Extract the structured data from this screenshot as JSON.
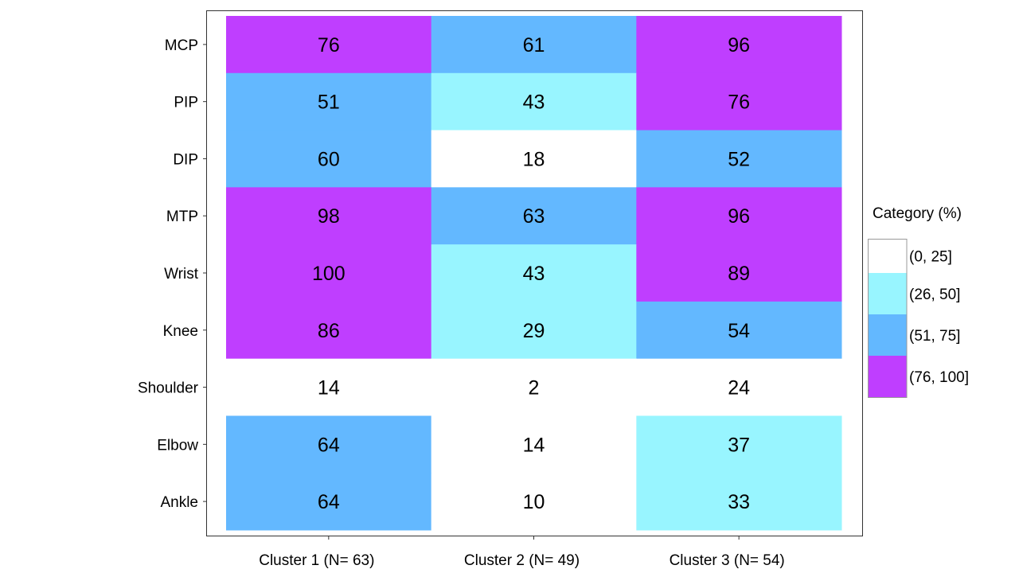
{
  "chart_data": {
    "type": "heatmap",
    "title": "",
    "xlabel": "",
    "ylabel": "",
    "x_categories": [
      "Cluster 1 (N= 63)",
      "Cluster 2 (N= 49)",
      "Cluster 3 (N= 54)"
    ],
    "y_categories": [
      "MCP",
      "PIP",
      "DIP",
      "MTP",
      "Wrist",
      "Knee",
      "Shoulder",
      "Elbow",
      "Ankle"
    ],
    "values": [
      [
        76,
        61,
        96
      ],
      [
        51,
        43,
        76
      ],
      [
        60,
        18,
        52
      ],
      [
        98,
        63,
        96
      ],
      [
        100,
        43,
        89
      ],
      [
        86,
        29,
        54
      ],
      [
        14,
        2,
        24
      ],
      [
        64,
        14,
        37
      ],
      [
        64,
        10,
        33
      ]
    ],
    "legend": {
      "title": "Category (%)",
      "placement": "right",
      "items": [
        {
          "label": "(0, 25]",
          "color": "#FFFFFF",
          "max": 25
        },
        {
          "label": "(26, 50]",
          "color": "#98F5FF",
          "max": 50
        },
        {
          "label": "(51, 75]",
          "color": "#63B8FF",
          "max": 75
        },
        {
          "label": "(76, 100]",
          "color": "#BF3EFF",
          "max": 100
        }
      ]
    },
    "grid": false
  }
}
